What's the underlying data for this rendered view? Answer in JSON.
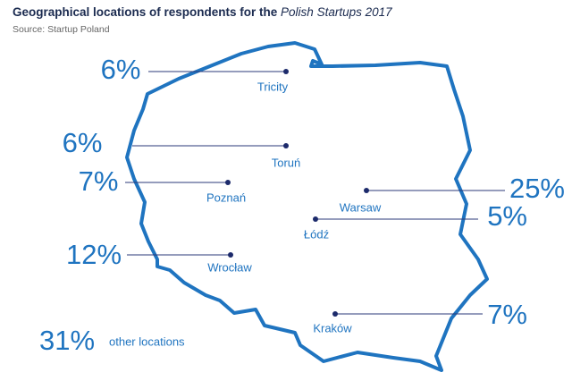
{
  "header": {
    "title": "Geographical locations of respondents for the ",
    "title_italic": "Polish Startups 2017",
    "source": "Source: Startup Poland"
  },
  "locations": [
    {
      "label": "Tricity",
      "value": "6%"
    },
    {
      "label": "Toruń",
      "value": "6%"
    },
    {
      "label": "Poznań",
      "value": "7%"
    },
    {
      "label": "Wrocław",
      "value": "12%"
    },
    {
      "label": "Warsaw",
      "value": "25%"
    },
    {
      "label": "Łódź",
      "value": "5%"
    },
    {
      "label": "Kraków",
      "value": "7%"
    }
  ],
  "other": {
    "value": "31%",
    "label": "other locations"
  }
}
